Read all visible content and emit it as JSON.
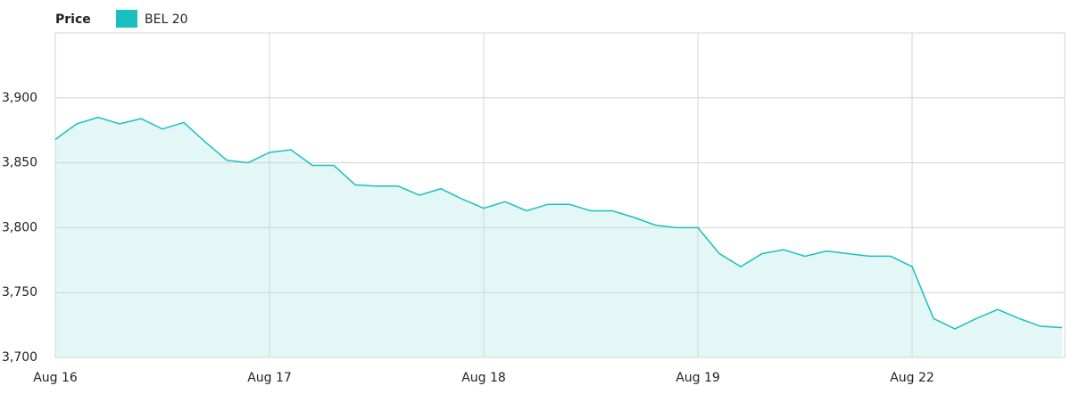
{
  "chart_data": {
    "type": "area",
    "legend_title": "Price",
    "categories": [
      "Aug 16",
      null,
      null,
      null,
      null,
      null,
      null,
      null,
      null,
      null,
      "Aug 17",
      null,
      null,
      null,
      null,
      null,
      null,
      null,
      null,
      null,
      "Aug 18",
      null,
      null,
      null,
      null,
      null,
      null,
      null,
      null,
      null,
      "Aug 19",
      null,
      null,
      null,
      null,
      null,
      null,
      null,
      null,
      null,
      "Aug 22",
      null,
      null,
      null,
      null,
      null,
      null,
      null
    ],
    "series": [
      {
        "name": "BEL 20",
        "color": "#1bbfbf",
        "values": [
          3868,
          3880,
          3885,
          3880,
          3884,
          3876,
          3881,
          3866,
          3852,
          3850,
          3858,
          3860,
          3848,
          3848,
          3833,
          3832,
          3832,
          3825,
          3830,
          3822,
          3815,
          3820,
          3813,
          3818,
          3818,
          3813,
          3813,
          3808,
          3802,
          3800,
          3800,
          3780,
          3770,
          3780,
          3783,
          3778,
          3782,
          3780,
          3778,
          3778,
          3770,
          3730,
          3722,
          3730,
          3737,
          3730,
          3724,
          3723
        ]
      }
    ],
    "ylim": [
      3700,
      3950
    ],
    "yticks": [
      {
        "value": 3700,
        "label": "3,700"
      },
      {
        "value": 3750,
        "label": "3,750"
      },
      {
        "value": 3800,
        "label": "3,800"
      },
      {
        "value": 3850,
        "label": "3,850"
      },
      {
        "value": 3900,
        "label": "3,900"
      }
    ],
    "grid": true
  }
}
